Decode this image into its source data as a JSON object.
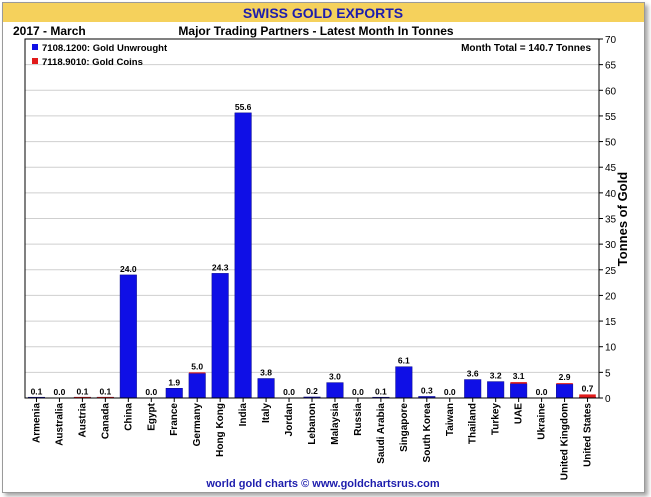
{
  "colors": {
    "title_band": "#f5d15c",
    "title_text": "#1d1dad",
    "unwrought": "#0f0fe6",
    "coins": "#e11a1a",
    "grid": "#cfcfcf",
    "plot_border": "#000000",
    "footer_text": "#1d1dad"
  },
  "chart_data": {
    "type": "bar",
    "title": "SWISS GOLD EXPORTS",
    "subtitle_left": "2017 - March",
    "subtitle_center": "Major Trading Partners - Latest Month In Tonnes",
    "annotation": "Month Total = 140.7 Tonnes",
    "ylabel": "Tonnes of Gold",
    "footer": "world gold charts © www.goldchartsrus.com",
    "ylim": [
      0,
      70
    ],
    "yticks": [
      0,
      5,
      10,
      15,
      20,
      25,
      30,
      35,
      40,
      45,
      50,
      55,
      60,
      65,
      70
    ],
    "ytick_labels": [
      "0",
      "5",
      "10",
      "15",
      "20",
      "25",
      "30",
      "35",
      "40",
      "45",
      "50",
      "55",
      "60",
      "65",
      "70"
    ],
    "grid": true,
    "legend_position": "top-left",
    "stacked": true,
    "categories": [
      "Armenia",
      "Australia",
      "Austria",
      "Canada",
      "China",
      "Egypt",
      "France",
      "Germany",
      "Hong Kong",
      "India",
      "Italy",
      "Jordan",
      "Lebanon",
      "Malaysia",
      "Russia",
      "Saudi Arabia",
      "Singapore",
      "South Korea",
      "Taiwan",
      "Thailand",
      "Turkey",
      "UAE",
      "Ukraine",
      "United Kingdom",
      "United States"
    ],
    "series": [
      {
        "name": "7108.1200: Gold Unwrought",
        "color": "#0f0fe6",
        "values": [
          0.1,
          0.0,
          0.05,
          0.05,
          24.0,
          0.0,
          1.9,
          4.8,
          24.3,
          55.6,
          3.8,
          0.0,
          0.2,
          3.0,
          0.0,
          0.1,
          6.1,
          0.3,
          0.0,
          3.6,
          3.2,
          2.8,
          0.0,
          2.7,
          0.1
        ]
      },
      {
        "name": "7118.9010: Gold Coins",
        "color": "#e11a1a",
        "values": [
          0.0,
          0.0,
          0.05,
          0.05,
          0.0,
          0.0,
          0.0,
          0.2,
          0.0,
          0.0,
          0.0,
          0.0,
          0.0,
          0.0,
          0.0,
          0.0,
          0.0,
          0.0,
          0.0,
          0.0,
          0.0,
          0.3,
          0.0,
          0.2,
          0.6
        ]
      }
    ],
    "data_labels": [
      "0.1",
      "0.0",
      "0.1",
      "0.1",
      "24.0",
      "0.0",
      "1.9",
      "5.0",
      "24.3",
      "55.6",
      "3.8",
      "0.0",
      "0.2",
      "3.0",
      "0.0",
      "0.1",
      "6.1",
      "0.3",
      "0.0",
      "3.6",
      "3.2",
      "3.1",
      "0.0",
      "2.9",
      "0.7"
    ]
  }
}
